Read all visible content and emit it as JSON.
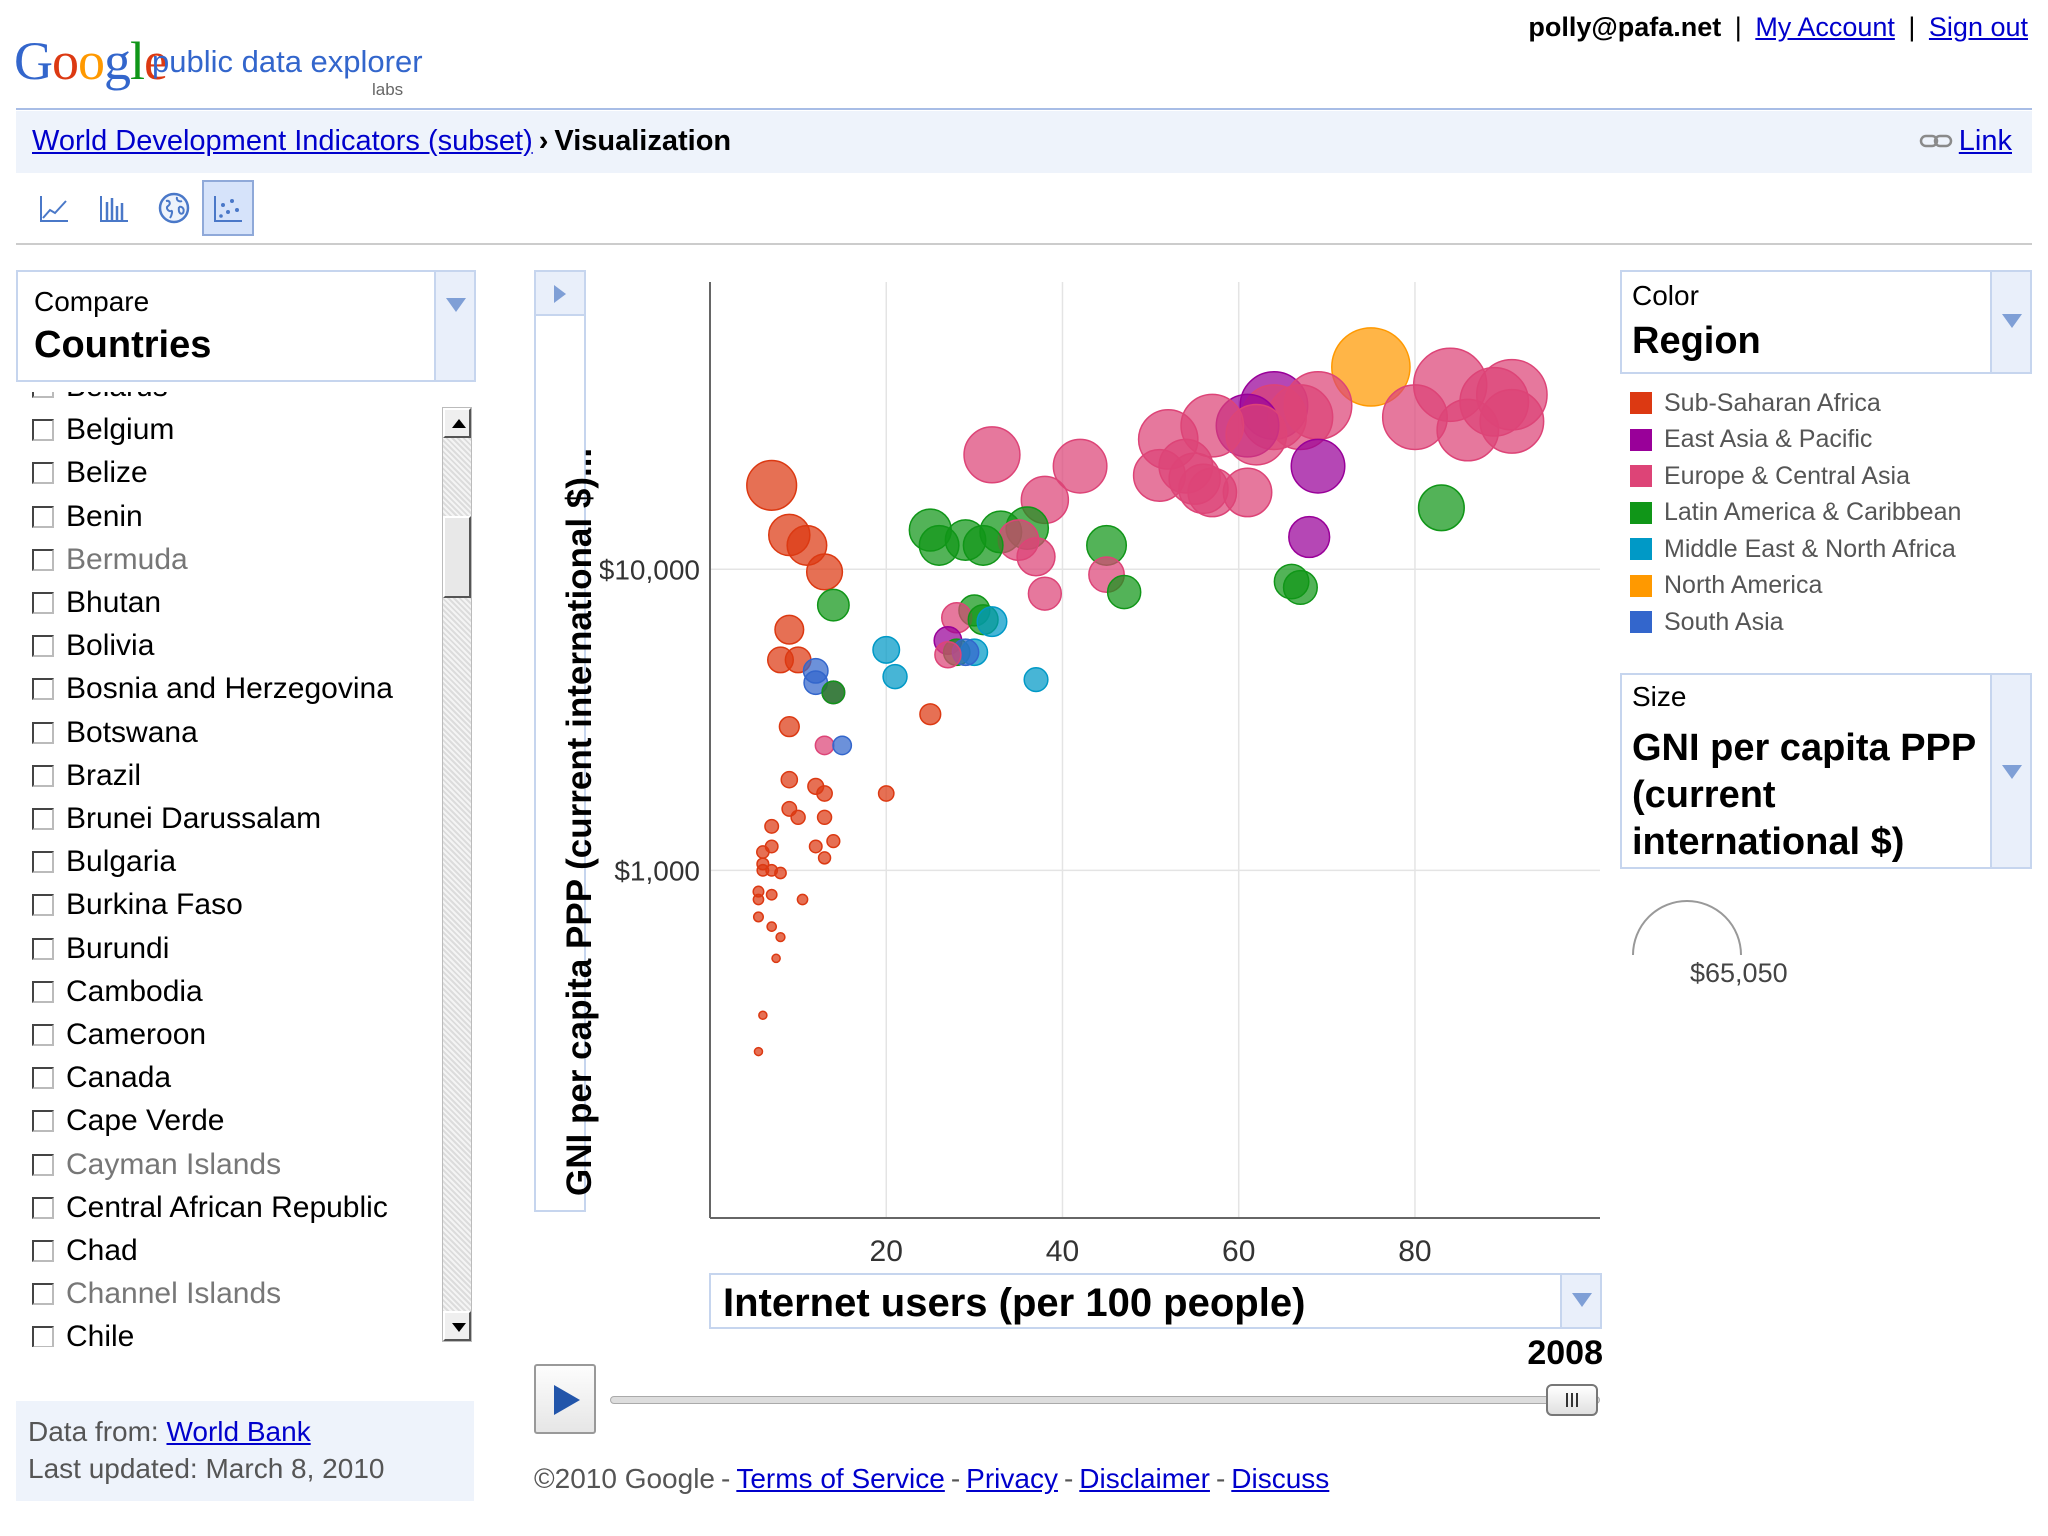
{
  "header": {
    "logo_text": "Google",
    "product_name": "public data explorer",
    "product_badge": "labs",
    "user_email": "polly@pafa.net",
    "my_account_label": "My Account",
    "sign_out_label": "Sign out",
    "separator": "|"
  },
  "breadcrumb": {
    "dataset_link": "World Development Indicators (subset)",
    "separator": "›",
    "current": "Visualization",
    "link_label": "Link"
  },
  "tabs": [
    {
      "name": "line-chart",
      "icon": "line-chart-icon",
      "selected": false
    },
    {
      "name": "bar-chart",
      "icon": "bar-chart-icon",
      "selected": false
    },
    {
      "name": "map-chart",
      "icon": "globe-icon",
      "selected": false
    },
    {
      "name": "bubble-chart",
      "icon": "scatter-icon",
      "selected": true
    }
  ],
  "left_panel": {
    "compare_label": "Compare",
    "compare_value": "Countries",
    "countries": [
      {
        "name": "Belarus",
        "dim": false
      },
      {
        "name": "Belgium",
        "dim": false
      },
      {
        "name": "Belize",
        "dim": false
      },
      {
        "name": "Benin",
        "dim": false
      },
      {
        "name": "Bermuda",
        "dim": true
      },
      {
        "name": "Bhutan",
        "dim": false
      },
      {
        "name": "Bolivia",
        "dim": false
      },
      {
        "name": "Bosnia and Herzegovina",
        "dim": false
      },
      {
        "name": "Botswana",
        "dim": false
      },
      {
        "name": "Brazil",
        "dim": false
      },
      {
        "name": "Brunei Darussalam",
        "dim": false
      },
      {
        "name": "Bulgaria",
        "dim": false
      },
      {
        "name": "Burkina Faso",
        "dim": false
      },
      {
        "name": "Burundi",
        "dim": false
      },
      {
        "name": "Cambodia",
        "dim": false
      },
      {
        "name": "Cameroon",
        "dim": false
      },
      {
        "name": "Canada",
        "dim": false
      },
      {
        "name": "Cape Verde",
        "dim": false
      },
      {
        "name": "Cayman Islands",
        "dim": true
      },
      {
        "name": "Central African Republic",
        "dim": false
      },
      {
        "name": "Chad",
        "dim": false
      },
      {
        "name": "Channel Islands",
        "dim": true
      },
      {
        "name": "Chile",
        "dim": false
      }
    ],
    "data_from_label": "Data from:",
    "data_source": "World Bank",
    "last_updated": "Last updated: March 8, 2010"
  },
  "chart_controls": {
    "y_axis_label": "GNI per capita PPP (current international $)...",
    "x_axis_label": "Internet users (per 100 people)",
    "year": "2008"
  },
  "right_panel": {
    "color_label": "Color",
    "color_value": "Region",
    "legend": [
      {
        "label": "Sub-Saharan Africa",
        "color": "#dc3912"
      },
      {
        "label": "East Asia & Pacific",
        "color": "#990099"
      },
      {
        "label": "Europe & Central Asia",
        "color": "#dd4477"
      },
      {
        "label": "Latin America & Caribbean",
        "color": "#109618"
      },
      {
        "label": "Middle East & North Africa",
        "color": "#0099c6"
      },
      {
        "label": "North America",
        "color": "#ff9900"
      },
      {
        "label": "South Asia",
        "color": "#3366cc"
      }
    ],
    "size_label": "Size",
    "size_value": "GNI per capita PPP (current international $)",
    "size_max": "$65,050"
  },
  "footer": {
    "copyright": "©2010 Google",
    "links": [
      "Terms of Service",
      "Privacy",
      "Disclaimer",
      "Discuss"
    ]
  },
  "chart_data": {
    "type": "scatter",
    "subtype": "bubble",
    "xlabel": "Internet users (per 100 people)",
    "ylabel": "GNI per capita PPP (current international $)",
    "x_ticks": [
      20,
      40,
      60,
      80
    ],
    "y_ticks": [
      {
        "value": 1000,
        "label": "$1,000"
      },
      {
        "value": 10000,
        "label": "$10,000"
      }
    ],
    "xlim": [
      0,
      101
    ],
    "ylim": [
      70,
      90000
    ],
    "y_scale": "log",
    "grid": true,
    "size_encoding": "GNI per capita PPP (current international $)",
    "size_max_value": 65050,
    "color_encoding": "Region",
    "series": [
      {
        "name": "Sub-Saharan Africa",
        "color": "#dc3912",
        "points": [
          [
            7,
            19000
          ],
          [
            9,
            13000
          ],
          [
            11,
            12000
          ],
          [
            13,
            9800
          ],
          [
            10,
            5000
          ],
          [
            8,
            5000
          ],
          [
            9,
            6300
          ],
          [
            9,
            3000
          ],
          [
            9,
            2000
          ],
          [
            12,
            1900
          ],
          [
            13,
            1800
          ],
          [
            13,
            1500
          ],
          [
            9,
            1600
          ],
          [
            10,
            1500
          ],
          [
            7,
            1400
          ],
          [
            7,
            1200
          ],
          [
            6,
            1150
          ],
          [
            6,
            1050
          ],
          [
            6,
            1000
          ],
          [
            7,
            1000
          ],
          [
            8,
            980
          ],
          [
            12,
            1200
          ],
          [
            13,
            1100
          ],
          [
            14,
            1250
          ],
          [
            5.5,
            850
          ],
          [
            7,
            830
          ],
          [
            5.5,
            800
          ],
          [
            5.5,
            700
          ],
          [
            7,
            650
          ],
          [
            10.5,
            800
          ],
          [
            8,
            600
          ],
          [
            7.5,
            510
          ],
          [
            6,
            330
          ],
          [
            5.5,
            250
          ],
          [
            25,
            3300
          ],
          [
            20,
            1800
          ]
        ]
      },
      {
        "name": "East Asia & Pacific",
        "color": "#990099",
        "points": [
          [
            61,
            30000
          ],
          [
            64,
            35000
          ],
          [
            69,
            22000
          ],
          [
            68,
            12800
          ],
          [
            14,
            3900
          ],
          [
            27,
            5800
          ]
        ]
      },
      {
        "name": "Europe & Central Asia",
        "color": "#dd4477",
        "points": [
          [
            91,
            38000
          ],
          [
            84,
            41000
          ],
          [
            89,
            36000
          ],
          [
            86,
            29000
          ],
          [
            91,
            31000
          ],
          [
            80,
            32000
          ],
          [
            69,
            35000
          ],
          [
            64,
            32000
          ],
          [
            62,
            28000
          ],
          [
            67,
            32000
          ],
          [
            57,
            30000
          ],
          [
            52,
            27000
          ],
          [
            54,
            22000
          ],
          [
            55,
            20000
          ],
          [
            56,
            18500
          ],
          [
            57,
            18000
          ],
          [
            61,
            18000
          ],
          [
            51,
            20500
          ],
          [
            42,
            22000
          ],
          [
            32,
            24000
          ],
          [
            38,
            17000
          ],
          [
            35,
            12500
          ],
          [
            37,
            11000
          ],
          [
            38,
            8300
          ],
          [
            45,
            9600
          ],
          [
            28,
            6900
          ],
          [
            27,
            5200
          ],
          [
            13,
            2600
          ]
        ]
      },
      {
        "name": "Latin America & Caribbean",
        "color": "#109618",
        "points": [
          [
            83,
            16000
          ],
          [
            25,
            13500
          ],
          [
            26,
            12000
          ],
          [
            29,
            12500
          ],
          [
            31,
            12000
          ],
          [
            33,
            13300
          ],
          [
            36,
            13700
          ],
          [
            45,
            12000
          ],
          [
            47,
            8400
          ],
          [
            66,
            9100
          ],
          [
            67,
            8700
          ],
          [
            30,
            7300
          ],
          [
            31,
            6800
          ],
          [
            14,
            7600
          ],
          [
            14,
            3900
          ],
          [
            28,
            5300
          ]
        ]
      },
      {
        "name": "Middle East & North Africa",
        "color": "#0099c6",
        "points": [
          [
            20,
            5400
          ],
          [
            21,
            4400
          ],
          [
            32,
            6700
          ],
          [
            30,
            5300
          ],
          [
            37,
            4300
          ]
        ]
      },
      {
        "name": "North America",
        "color": "#ff9900",
        "points": [
          [
            75,
            47000
          ]
        ]
      },
      {
        "name": "South Asia",
        "color": "#3366cc",
        "points": [
          [
            12,
            4600
          ],
          [
            12,
            4200
          ],
          [
            29,
            5300
          ],
          [
            15,
            2600
          ]
        ]
      }
    ]
  }
}
